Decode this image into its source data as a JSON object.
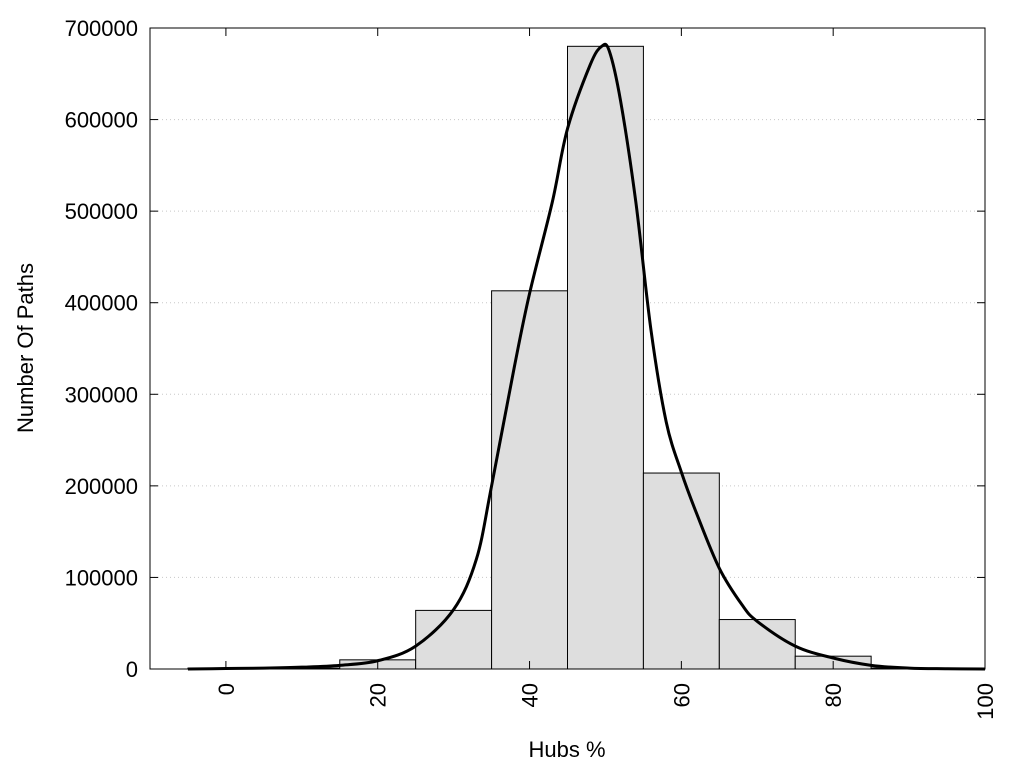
{
  "chart_data": {
    "type": "bar",
    "title": "",
    "xlabel": "Hubs %",
    "ylabel": "Number Of Paths",
    "xlim": [
      -10,
      100
    ],
    "ylim": [
      0,
      700000
    ],
    "x_ticks": [
      0,
      20,
      40,
      60,
      80,
      100
    ],
    "y_ticks": [
      0,
      100000,
      200000,
      300000,
      400000,
      500000,
      600000,
      700000
    ],
    "grid": "horizontal dotted",
    "bar_width": 10,
    "bins": [
      0,
      10,
      20,
      30,
      40,
      50,
      60,
      70,
      80,
      90
    ],
    "values": [
      1000,
      1000,
      10000,
      64000,
      413000,
      680000,
      214000,
      54000,
      14000,
      1000
    ],
    "curve": {
      "x": [
        -5,
        0,
        5,
        10,
        15,
        20,
        25,
        30,
        33,
        35,
        38,
        40,
        43,
        45,
        48,
        49.5,
        50.5,
        52,
        54,
        56,
        58,
        60,
        62,
        65,
        68,
        70,
        75,
        80,
        85,
        90,
        95,
        100
      ],
      "y": [
        0,
        500,
        1000,
        2000,
        4000,
        9000,
        25000,
        65000,
        120000,
        200000,
        330000,
        410000,
        510000,
        590000,
        660000,
        680000,
        675000,
        620000,
        510000,
        370000,
        270000,
        215000,
        170000,
        110000,
        70000,
        52000,
        25000,
        12000,
        4000,
        1000,
        300,
        0
      ]
    },
    "colors": {
      "bar_fill": "#dedede",
      "bar_stroke": "#000000",
      "curve": "#000000",
      "grid": "#c8c8c8"
    }
  }
}
